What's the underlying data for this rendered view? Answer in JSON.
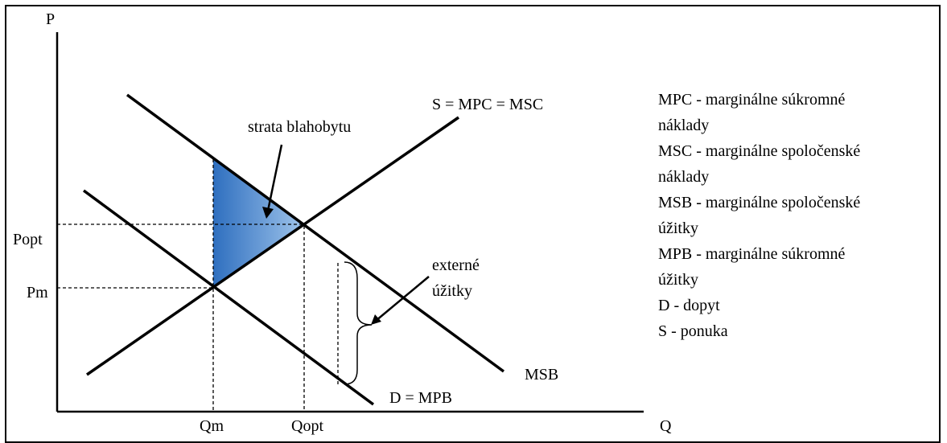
{
  "axes": {
    "y_label": "P",
    "x_label": "Q"
  },
  "price_ticks": [
    "Popt",
    "Pm"
  ],
  "quantity_ticks": [
    "Qm",
    "Qopt"
  ],
  "curves": {
    "supply": "S = MPC = MSC",
    "msb": "MSB",
    "demand": "D = MPB"
  },
  "annotations": {
    "welfare_loss": "strata blahobytu",
    "external_benefits_line1": "externé",
    "external_benefits_line2": "úžitky"
  },
  "colors": {
    "triangle_dark": "#2f6fbf",
    "triangle_light": "#9cc2ea",
    "lines": "#000000"
  },
  "legend": [
    "MPC - marginálne súkromné",
    "náklady",
    "MSC - marginálne spoločenské",
    "náklady",
    "MSB - marginálne spoločenské",
    "úžitky",
    "MPB - marginálne súkromné",
    "úžitky",
    "D - dopyt",
    "S - ponuka"
  ]
}
